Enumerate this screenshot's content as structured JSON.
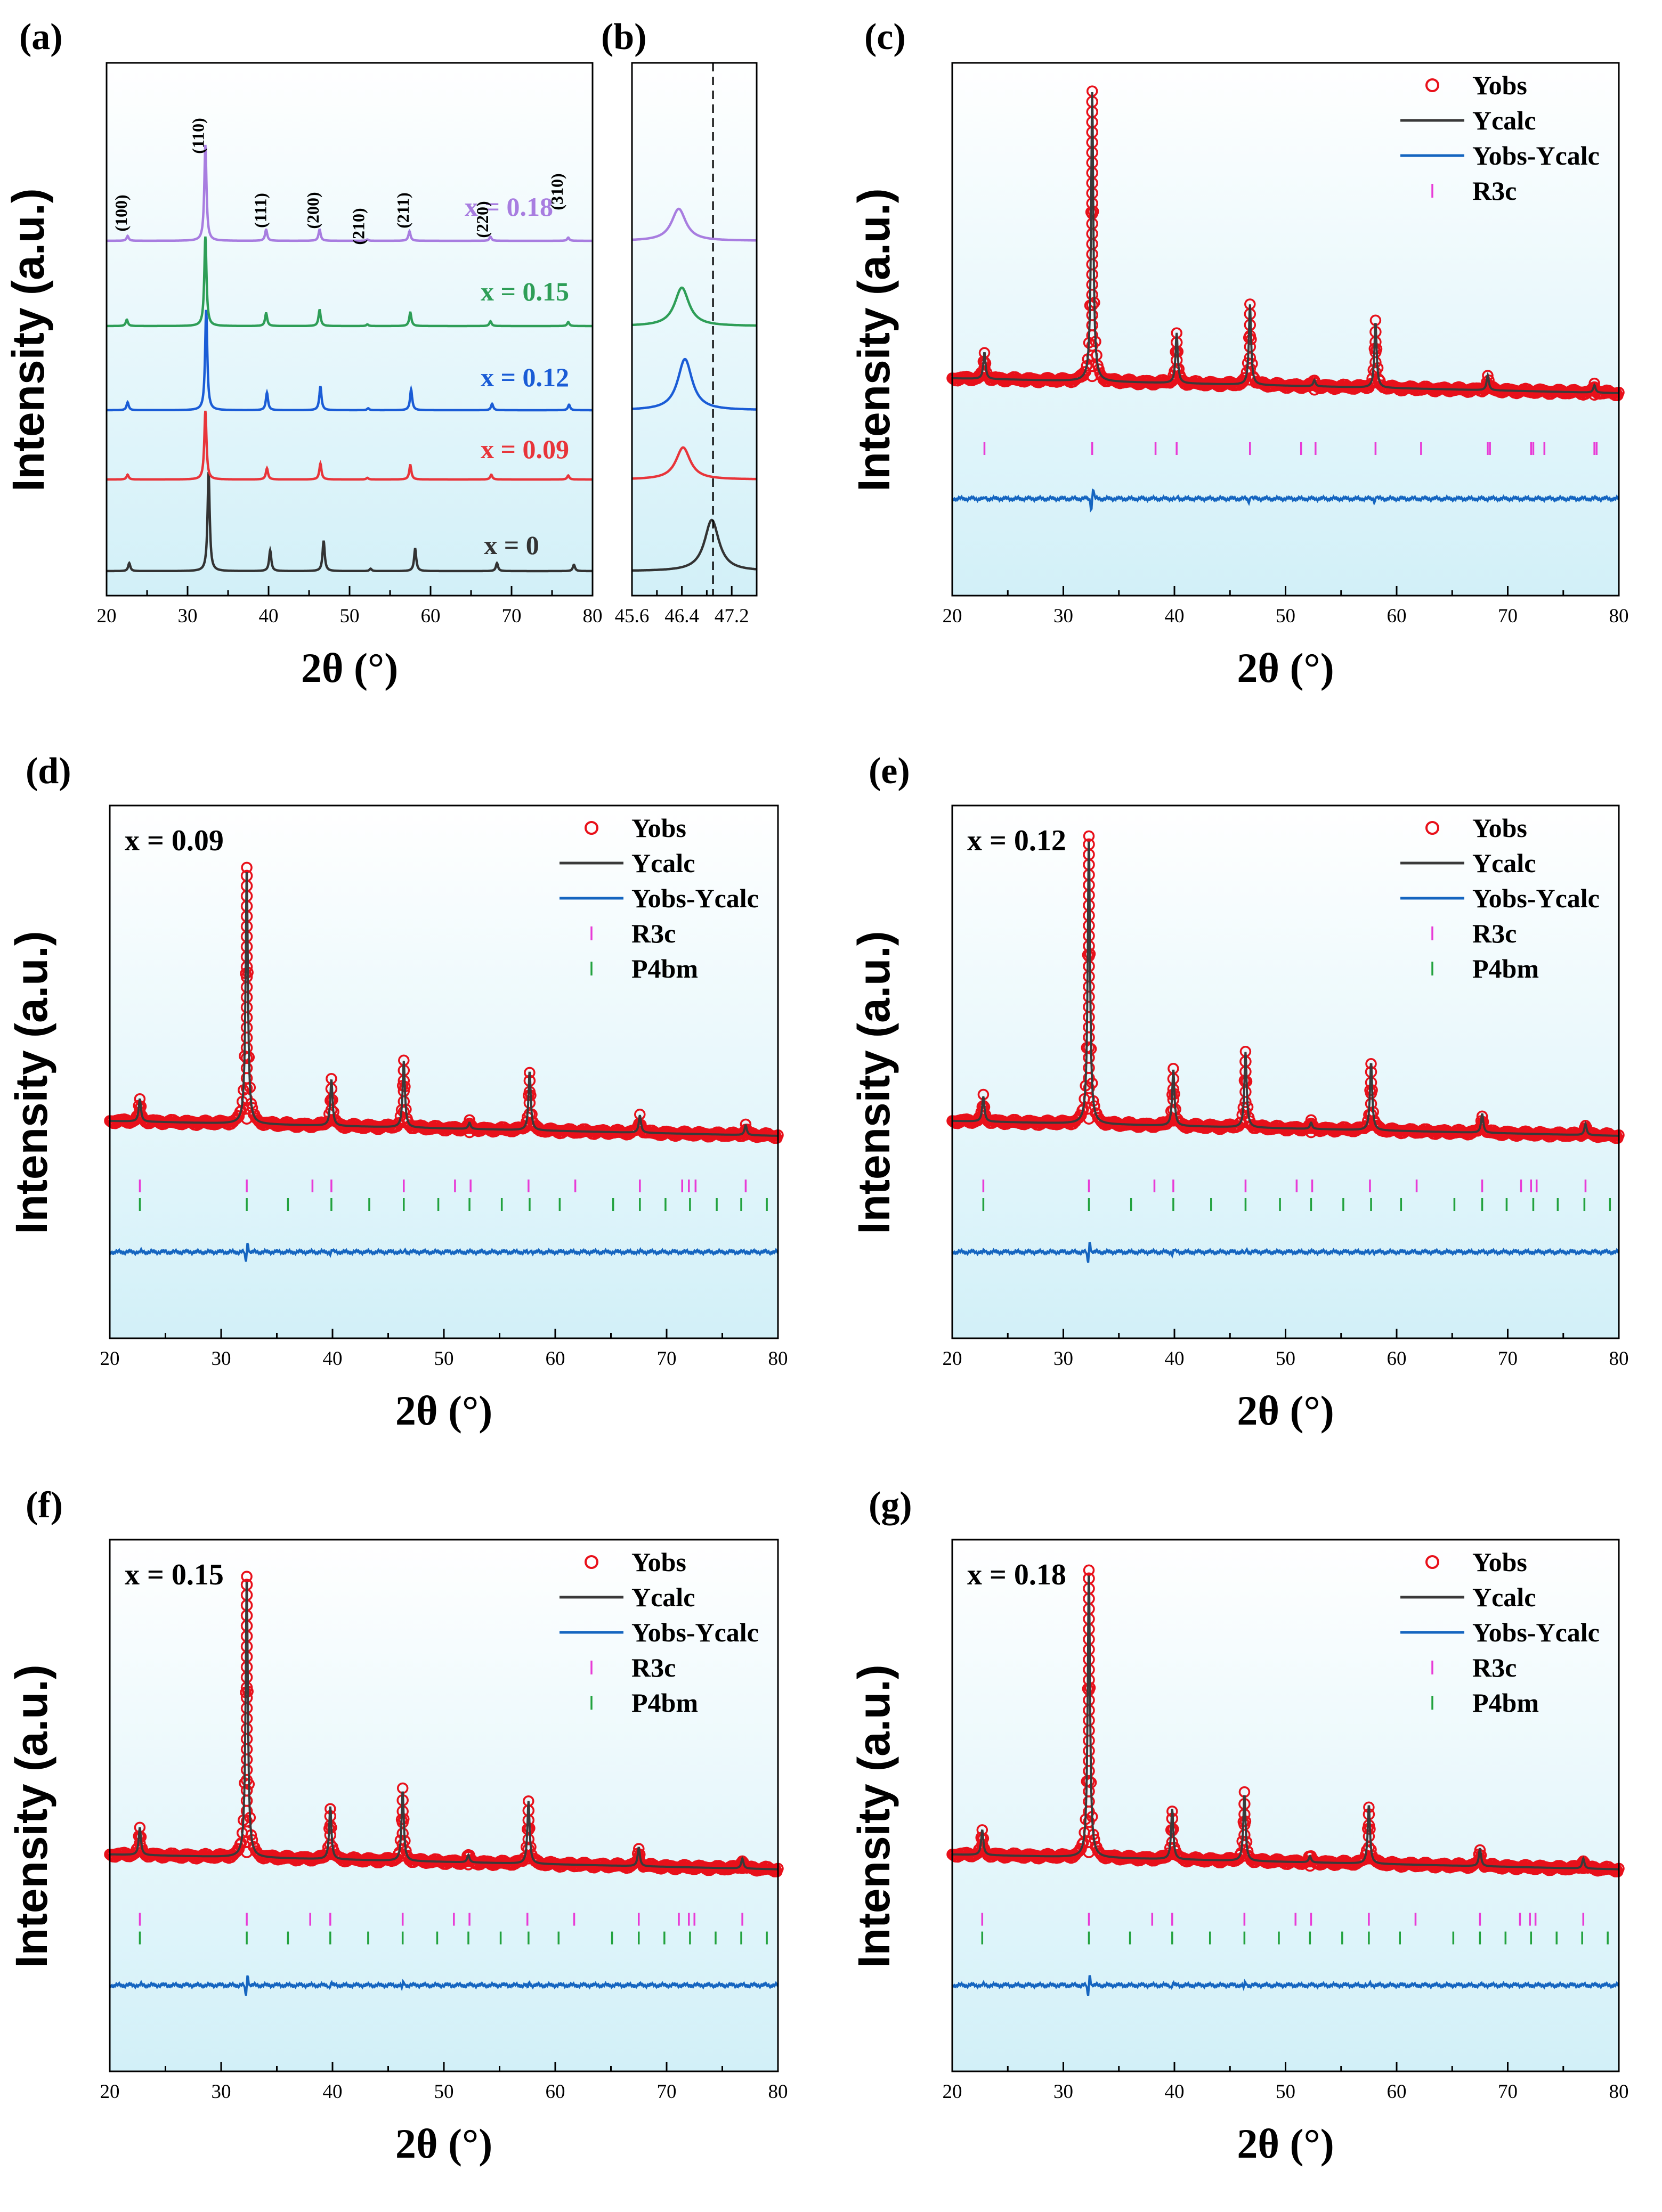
{
  "colors": {
    "obs": "#e8101a",
    "calc": "#3a3a3a",
    "diff": "#1565c0",
    "r3c": "#e83bd6",
    "p4bm": "#22a23e",
    "bg_top": "#ffffff",
    "bg_bottom": "#d2f0f8",
    "x0": "#333333",
    "x009": "#e8353a",
    "x012": "#1a5cd6",
    "x015": "#2e9e57",
    "x018": "#a87de0"
  },
  "chart_data": [
    {
      "id": "a",
      "panel_label": "(a)",
      "type": "line",
      "xlabel": "2θ (°)",
      "ylabel": "Intensity (a.u.)",
      "xlim": [
        20,
        80
      ],
      "xticks": [
        "20",
        "30",
        "40",
        "50",
        "60",
        "70",
        "80"
      ],
      "series": [
        {
          "name": "x = 0",
          "offset": 0,
          "peaks": [
            [
              22.8,
              0.5
            ],
            [
              32.6,
              6.2
            ],
            [
              40.2,
              1.3
            ],
            [
              46.8,
              1.9
            ],
            [
              52.6,
              0.15
            ],
            [
              58.1,
              1.4
            ],
            [
              68.2,
              0.5
            ],
            [
              77.7,
              0.4
            ]
          ]
        },
        {
          "name": "x = 0.09",
          "offset": 1,
          "peaks": [
            [
              22.6,
              0.3
            ],
            [
              32.2,
              4.3
            ],
            [
              39.8,
              0.7
            ],
            [
              46.4,
              1.0
            ],
            [
              52.2,
              0.1
            ],
            [
              57.5,
              0.9
            ],
            [
              67.5,
              0.3
            ],
            [
              77.0,
              0.25
            ]
          ]
        },
        {
          "name": "x = 0.12",
          "offset": 2,
          "peaks": [
            [
              22.6,
              0.5
            ],
            [
              32.3,
              6.3
            ],
            [
              39.8,
              1.1
            ],
            [
              46.4,
              1.5
            ],
            [
              52.3,
              0.12
            ],
            [
              57.6,
              1.3
            ],
            [
              67.6,
              0.4
            ],
            [
              77.1,
              0.35
            ]
          ]
        },
        {
          "name": "x = 0.15",
          "offset": 3,
          "peaks": [
            [
              22.5,
              0.4
            ],
            [
              32.2,
              5.6
            ],
            [
              39.7,
              0.8
            ],
            [
              46.3,
              1.0
            ],
            [
              52.2,
              0.1
            ],
            [
              57.5,
              0.85
            ],
            [
              67.4,
              0.3
            ],
            [
              77.0,
              0.25
            ]
          ]
        },
        {
          "name": "x = 0.18",
          "offset": 4,
          "peaks": [
            [
              22.6,
              0.3
            ],
            [
              32.2,
              6.0
            ],
            [
              39.7,
              0.7
            ],
            [
              46.3,
              0.7
            ],
            [
              52.2,
              0.08
            ],
            [
              57.4,
              0.6
            ],
            [
              67.4,
              0.25
            ],
            [
              77.0,
              0.2
            ]
          ]
        }
      ],
      "annotations": [
        {
          "text": "(100)",
          "x": 22.5
        },
        {
          "text": "(110)",
          "x": 32.0
        },
        {
          "text": "(111)",
          "x": 39.7
        },
        {
          "text": "(200)",
          "x": 46.2
        },
        {
          "text": "(210)",
          "x": 51.8
        },
        {
          "text": "(211)",
          "x": 57.3
        },
        {
          "text": "(220)",
          "x": 67.1
        },
        {
          "text": "(310)",
          "x": 76.3
        }
      ]
    },
    {
      "id": "b",
      "panel_label": "(b)",
      "type": "line",
      "xlabel": "",
      "ylabel": "",
      "xlim": [
        45.6,
        47.6
      ],
      "xticks": [
        "45.6",
        "46.4",
        "47.2"
      ],
      "reference_line_x": 46.9,
      "series": [
        {
          "name": "x = 0",
          "offset": 0,
          "peak": [
            46.88,
            1.6
          ]
        },
        {
          "name": "x = 0.09",
          "offset": 1,
          "peak": [
            46.42,
            1.0
          ]
        },
        {
          "name": "x = 0.12",
          "offset": 2,
          "peak": [
            46.45,
            1.6
          ]
        },
        {
          "name": "x = 0.15",
          "offset": 3,
          "peak": [
            46.4,
            1.2
          ]
        },
        {
          "name": "x = 0.18",
          "offset": 4,
          "peak": [
            46.35,
            1.0
          ]
        }
      ]
    },
    {
      "id": "c",
      "panel_label": "(c)",
      "type": "scatter",
      "composition": "",
      "xlabel": "2θ (°)",
      "ylabel": "Intensity (a.u.)",
      "xlim": [
        20,
        80
      ],
      "xticks": [
        "20",
        "30",
        "40",
        "50",
        "60",
        "70",
        "80"
      ],
      "legend": [
        "Yobs",
        "Ycalc",
        "Yobs-Ycalc",
        "R3c"
      ],
      "peaks": [
        [
          22.9,
          0.42
        ],
        [
          32.6,
          4.6
        ],
        [
          40.2,
          0.8
        ],
        [
          46.8,
          1.28
        ],
        [
          52.6,
          0.1
        ],
        [
          58.1,
          1.04
        ],
        [
          68.2,
          0.24
        ],
        [
          77.8,
          0.12
        ]
      ],
      "r3c_ticks": [
        22.9,
        32.6,
        38.3,
        40.2,
        46.8,
        51.4,
        52.7,
        58.1,
        62.2,
        68.2,
        68.4,
        72.1,
        72.3,
        73.3,
        77.8,
        78.0
      ],
      "p4bm_ticks": []
    },
    {
      "id": "d",
      "panel_label": "(d)",
      "type": "scatter",
      "composition": "x = 0.09",
      "xlabel": "2θ (°)",
      "ylabel": "Intensity (a.u.)",
      "xlim": [
        20,
        80
      ],
      "xticks": [
        "20",
        "30",
        "40",
        "50",
        "60",
        "70",
        "80"
      ],
      "legend": [
        "Yobs",
        "Ycalc",
        "Yobs-Ycalc",
        "R3c",
        "P4bm"
      ],
      "peaks": [
        [
          22.7,
          0.36
        ],
        [
          32.3,
          4.1
        ],
        [
          39.9,
          0.74
        ],
        [
          46.4,
          1.06
        ],
        [
          52.3,
          0.1
        ],
        [
          57.7,
          0.94
        ],
        [
          67.6,
          0.28
        ],
        [
          77.1,
          0.16
        ]
      ],
      "r3c_ticks": [
        22.7,
        32.3,
        38.2,
        39.9,
        46.4,
        51.0,
        52.4,
        57.6,
        61.8,
        67.6,
        71.4,
        72.0,
        72.6,
        77.1
      ],
      "p4bm_ticks": [
        22.7,
        32.3,
        36.0,
        39.9,
        43.3,
        46.4,
        49.5,
        52.3,
        55.2,
        57.7,
        60.4,
        65.2,
        67.6,
        69.9,
        72.1,
        74.5,
        76.7,
        79.0
      ]
    },
    {
      "id": "e",
      "panel_label": "(e)",
      "type": "scatter",
      "composition": "x = 0.12",
      "xlabel": "2θ (°)",
      "ylabel": "Intensity (a.u.)",
      "xlim": [
        20,
        80
      ],
      "xticks": [
        "20",
        "30",
        "40",
        "50",
        "60",
        "70",
        "80"
      ],
      "legend": [
        "Yobs",
        "Ycalc",
        "Yobs-Ycalc",
        "R3c",
        "P4bm"
      ],
      "peaks": [
        [
          22.8,
          0.4
        ],
        [
          32.3,
          4.6
        ],
        [
          39.9,
          0.9
        ],
        [
          46.4,
          1.2
        ],
        [
          52.3,
          0.1
        ],
        [
          57.7,
          1.08
        ],
        [
          67.7,
          0.3
        ],
        [
          77.0,
          0.18
        ]
      ],
      "r3c_ticks": [
        22.8,
        32.3,
        38.2,
        39.9,
        46.4,
        51.0,
        52.4,
        57.6,
        61.8,
        67.7,
        71.2,
        72.1,
        72.6,
        77.0
      ],
      "p4bm_ticks": [
        22.8,
        32.3,
        36.1,
        39.9,
        43.3,
        46.4,
        49.5,
        52.3,
        55.2,
        57.7,
        60.4,
        65.2,
        67.7,
        69.9,
        72.3,
        74.5,
        76.9,
        79.2
      ]
    },
    {
      "id": "f",
      "panel_label": "(f)",
      "type": "scatter",
      "composition": "x = 0.15",
      "xlabel": "2θ (°)",
      "ylabel": "Intensity (a.u.)",
      "xlim": [
        20,
        80
      ],
      "xticks": [
        "20",
        "30",
        "40",
        "50",
        "60",
        "70",
        "80"
      ],
      "legend": [
        "Yobs",
        "Ycalc",
        "Yobs-Ycalc",
        "R3c",
        "P4bm"
      ],
      "peaks": [
        [
          22.7,
          0.44
        ],
        [
          32.3,
          4.5
        ],
        [
          39.8,
          0.84
        ],
        [
          46.3,
          1.12
        ],
        [
          52.2,
          0.12
        ],
        [
          57.6,
          1.0
        ],
        [
          67.5,
          0.3
        ],
        [
          76.8,
          0.16
        ]
      ],
      "r3c_ticks": [
        22.7,
        32.3,
        38.0,
        39.8,
        46.3,
        50.9,
        52.3,
        57.5,
        61.7,
        67.5,
        71.1,
        72.0,
        72.5,
        76.8
      ],
      "p4bm_ticks": [
        22.7,
        32.3,
        36.0,
        39.8,
        43.2,
        46.3,
        49.4,
        52.2,
        55.1,
        57.6,
        60.3,
        65.1,
        67.5,
        69.8,
        72.1,
        74.4,
        76.7,
        79.0
      ]
    },
    {
      "id": "g",
      "panel_label": "(g)",
      "type": "scatter",
      "composition": "x = 0.18",
      "xlabel": "2θ (°)",
      "ylabel": "Intensity (a.u.)",
      "xlim": [
        20,
        80
      ],
      "xticks": [
        "20",
        "30",
        "40",
        "50",
        "60",
        "70",
        "80"
      ],
      "legend": [
        "Yobs",
        "Ycalc",
        "Yobs-Ycalc",
        "R3c",
        "P4bm"
      ],
      "peaks": [
        [
          22.7,
          0.4
        ],
        [
          32.3,
          4.6
        ],
        [
          39.8,
          0.8
        ],
        [
          46.3,
          1.06
        ],
        [
          52.2,
          0.1
        ],
        [
          57.5,
          0.94
        ],
        [
          67.5,
          0.28
        ],
        [
          76.8,
          0.16
        ]
      ],
      "r3c_ticks": [
        22.7,
        32.3,
        38.0,
        39.8,
        46.3,
        50.9,
        52.3,
        57.5,
        61.7,
        67.5,
        71.1,
        72.0,
        72.5,
        76.8
      ],
      "p4bm_ticks": [
        22.7,
        32.3,
        36.0,
        39.8,
        43.2,
        46.3,
        49.4,
        52.2,
        55.1,
        57.5,
        60.3,
        65.1,
        67.5,
        69.8,
        72.1,
        74.4,
        76.7,
        79.0
      ]
    }
  ]
}
